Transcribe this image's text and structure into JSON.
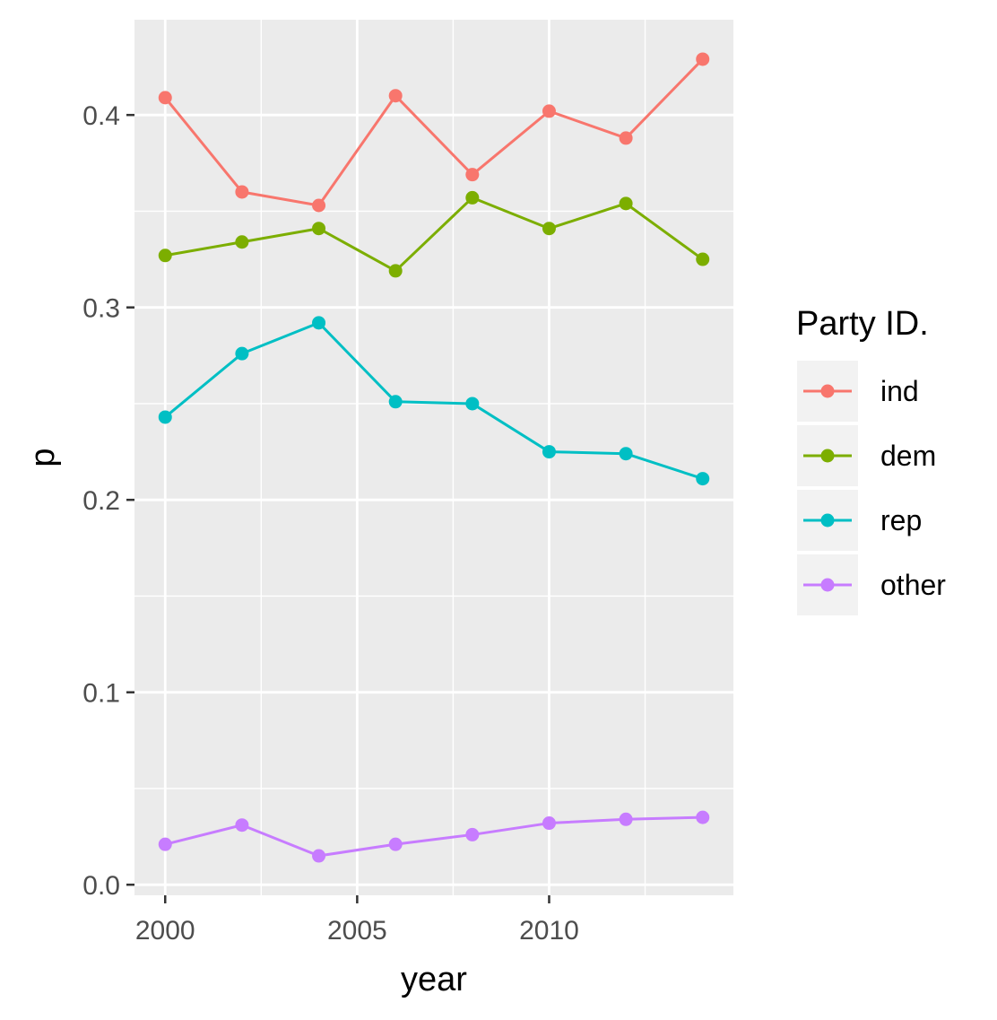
{
  "chart_data": {
    "type": "line",
    "xlabel": "year",
    "ylabel": "p",
    "xlim": [
      1999.2,
      2014.8
    ],
    "ylim": [
      -0.0055,
      0.4495
    ],
    "x_ticks": [
      2000,
      2005,
      2010
    ],
    "x_tick_labels": [
      "2000",
      "2005",
      "2010"
    ],
    "x_minor_breaks": [
      2002.5,
      2007.5,
      2012.5
    ],
    "y_ticks": [
      0.0,
      0.1,
      0.2,
      0.3,
      0.4
    ],
    "y_tick_labels": [
      "0.0",
      "0.1",
      "0.2",
      "0.3",
      "0.4"
    ],
    "y_minor_breaks": [
      0.05,
      0.15,
      0.25,
      0.35
    ],
    "x": [
      2000,
      2002,
      2004,
      2006,
      2008,
      2010,
      2012,
      2014
    ],
    "series": [
      {
        "name": "ind",
        "color": "#F8766D",
        "values": [
          0.409,
          0.36,
          0.353,
          0.41,
          0.369,
          0.402,
          0.388,
          0.429
        ]
      },
      {
        "name": "dem",
        "color": "#7CAE00",
        "values": [
          0.327,
          0.334,
          0.341,
          0.319,
          0.357,
          0.341,
          0.354,
          0.325
        ]
      },
      {
        "name": "rep",
        "color": "#00BFC4",
        "values": [
          0.243,
          0.276,
          0.292,
          0.251,
          0.25,
          0.225,
          0.224,
          0.211
        ]
      },
      {
        "name": "other",
        "color": "#C77CFF",
        "values": [
          0.021,
          0.031,
          0.015,
          0.021,
          0.026,
          0.032,
          0.034,
          0.035
        ]
      }
    ],
    "legend": {
      "title": "Party ID.",
      "position": "right"
    },
    "grid": true,
    "panel_background": "#EBEBEB",
    "grid_color": "#FFFFFF"
  }
}
